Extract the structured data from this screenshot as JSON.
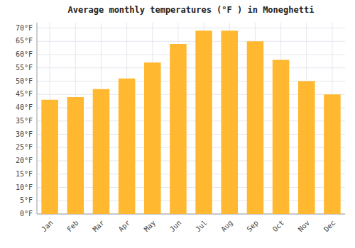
{
  "chart_data": {
    "type": "bar",
    "title": "Average monthly temperatures (°F ) in Moneghetti",
    "categories": [
      "Jan",
      "Feb",
      "Mar",
      "Apr",
      "May",
      "Jun",
      "Jul",
      "Aug",
      "Sep",
      "Oct",
      "Nov",
      "Dec"
    ],
    "values": [
      43,
      44,
      47,
      51,
      57,
      64,
      69,
      69,
      65,
      58,
      50,
      45
    ],
    "color": "#FFB830",
    "ylim": [
      0,
      72
    ],
    "yticks": [
      {
        "value": 0,
        "label": "0°F"
      },
      {
        "value": 5,
        "label": "5°F"
      },
      {
        "value": 10,
        "label": "10°F"
      },
      {
        "value": 15,
        "label": "15°F"
      },
      {
        "value": 20,
        "label": "20°F"
      },
      {
        "value": 25,
        "label": "25°F"
      },
      {
        "value": 30,
        "label": "30°F"
      },
      {
        "value": 35,
        "label": "35°F"
      },
      {
        "value": 40,
        "label": "40°F"
      },
      {
        "value": 45,
        "label": "45°F"
      },
      {
        "value": 50,
        "label": "50°F"
      },
      {
        "value": 55,
        "label": "55°F"
      },
      {
        "value": 60,
        "label": "60°F"
      },
      {
        "value": 65,
        "label": "65°F"
      },
      {
        "value": 70,
        "label": "70°F"
      }
    ],
    "grid": true
  }
}
